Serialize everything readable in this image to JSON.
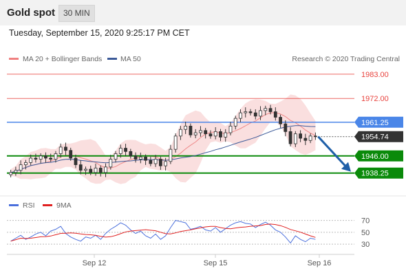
{
  "header": {
    "title": "Gold spot",
    "timeframe": "30 MIN"
  },
  "datetime": "Tuesday, September 15, 2020 9:25:17 PM CET",
  "legend": {
    "ma20": "MA 20 + Bollinger Bands",
    "ma50": "MA 50",
    "copyright": "Research © 2020 Trading Central"
  },
  "rsi_legend": {
    "rsi": "RSI",
    "ma9": "9MA"
  },
  "colors": {
    "resistance": "#e8413c",
    "pivot": "#4a86e8",
    "support": "#0a8a0a",
    "last": "#333333",
    "arrow": "#1f5fa8",
    "bollinger": "#f7caca",
    "ma50": "#3b5998",
    "rsi": "#4a6fdc",
    "rsi_ma": "#e02020",
    "candle_up": "#2e7d2e",
    "candle_down": "#c62828"
  },
  "chart_data": {
    "type": "candlestick",
    "instrument": "Gold spot",
    "timeframe": "30 MIN",
    "y_range": [
      1931,
      1987
    ],
    "levels": [
      {
        "label": "1983.00",
        "value": 1983.0,
        "kind": "resistance"
      },
      {
        "label": "1972.00",
        "value": 1972.0,
        "kind": "resistance"
      },
      {
        "label": "1961.25",
        "value": 1961.25,
        "kind": "pivot"
      },
      {
        "label": "1954.74",
        "value": 1954.74,
        "kind": "last"
      },
      {
        "label": "1946.00",
        "value": 1946.0,
        "kind": "support"
      },
      {
        "label": "1938.25",
        "value": 1938.25,
        "kind": "support"
      }
    ],
    "arrow": {
      "from": 1954.74,
      "to": 1938.25
    },
    "x_labels": [
      "Sep 12",
      "Sep 15",
      "Sep 16"
    ],
    "closes": [
      1938.5,
      1939.5,
      1942.0,
      1943.0,
      1945.0,
      1944.5,
      1946.0,
      1945.0,
      1944.5,
      1947.0,
      1950.0,
      1948.5,
      1945.0,
      1942.0,
      1939.5,
      1940.0,
      1938.5,
      1940.5,
      1938.5,
      1941.0,
      1944.5,
      1947.0,
      1949.5,
      1948.0,
      1946.0,
      1944.5,
      1945.5,
      1944.0,
      1942.5,
      1944.5,
      1941.5,
      1943.5,
      1949.0,
      1955.0,
      1958.0,
      1959.5,
      1955.5,
      1956.5,
      1957.5,
      1956.0,
      1955.0,
      1957.0,
      1954.5,
      1956.5,
      1959.5,
      1963.0,
      1965.5,
      1966.0,
      1965.5,
      1964.0,
      1966.5,
      1967.5,
      1966.0,
      1963.5,
      1960.5,
      1957.0,
      1951.5,
      1956.0,
      1954.0,
      1953.0,
      1955.0,
      1954.74
    ],
    "rsi": {
      "levels": [
        70,
        50,
        30
      ],
      "values": [
        35,
        40,
        45,
        38,
        42,
        47,
        50,
        44,
        52,
        55,
        60,
        48,
        42,
        38,
        35,
        42,
        40,
        45,
        38,
        48,
        55,
        60,
        66,
        62,
        54,
        48,
        52,
        44,
        40,
        47,
        38,
        44,
        58,
        70,
        68,
        66,
        55,
        57,
        60,
        54,
        52,
        58,
        50,
        56,
        62,
        66,
        68,
        65,
        64,
        58,
        63,
        67,
        62,
        54,
        50,
        42,
        32,
        44,
        38,
        34,
        40,
        38
      ]
    }
  }
}
